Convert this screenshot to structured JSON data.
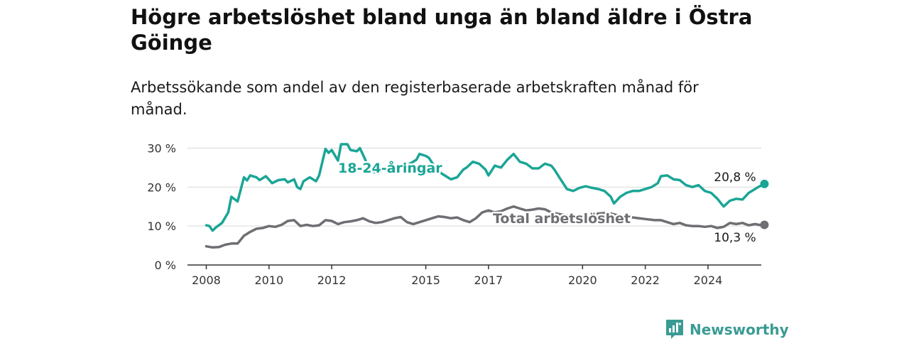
{
  "header": {
    "title": "Högre arbetslöshet bland unga än bland äldre i Östra Göinge",
    "subtitle": "Arbetssökande som andel av den registerbaserade arbetskraften månad för månad."
  },
  "brand": {
    "name": "Newsworthy",
    "color": "#3a9b94"
  },
  "chart_data": {
    "type": "line",
    "title": "Högre arbetslöshet bland unga än bland äldre i Östra Göinge",
    "subtitle": "Arbetssökande som andel av den registerbaserade arbetskraften månad för månad.",
    "xlabel": "",
    "ylabel": "",
    "x_ticks": [
      "2008",
      "2010",
      "2012",
      "2015",
      "2017",
      "2020",
      "2022",
      "2024"
    ],
    "x_range": [
      2007.4,
      2025.7
    ],
    "y_ticks": [
      {
        "value": 0,
        "label": "0 %"
      },
      {
        "value": 10,
        "label": "10 %"
      },
      {
        "value": 20,
        "label": "20 %"
      },
      {
        "value": 30,
        "label": "30 %"
      }
    ],
    "ylim": [
      0,
      31
    ],
    "grid": true,
    "legend": "inline labels",
    "series": [
      {
        "name": "18-24-åringar",
        "color": "#1aa596",
        "end_label": "20,8 %",
        "points": [
          [
            2008.0,
            10.2
          ],
          [
            2008.1,
            10.0
          ],
          [
            2008.2,
            8.8
          ],
          [
            2008.3,
            9.6
          ],
          [
            2008.5,
            10.8
          ],
          [
            2008.7,
            13.5
          ],
          [
            2008.8,
            17.5
          ],
          [
            2009.0,
            16.3
          ],
          [
            2009.2,
            22.5
          ],
          [
            2009.3,
            21.7
          ],
          [
            2009.4,
            23.0
          ],
          [
            2009.6,
            22.5
          ],
          [
            2009.7,
            21.8
          ],
          [
            2009.9,
            22.8
          ],
          [
            2010.1,
            21.0
          ],
          [
            2010.3,
            21.8
          ],
          [
            2010.5,
            22.0
          ],
          [
            2010.6,
            21.2
          ],
          [
            2010.8,
            22.0
          ],
          [
            2010.9,
            20.0
          ],
          [
            2011.0,
            19.5
          ],
          [
            2011.1,
            21.5
          ],
          [
            2011.3,
            22.5
          ],
          [
            2011.5,
            21.5
          ],
          [
            2011.6,
            23.0
          ],
          [
            2011.8,
            29.8
          ],
          [
            2011.9,
            28.8
          ],
          [
            2012.0,
            29.5
          ],
          [
            2012.2,
            26.8
          ],
          [
            2012.3,
            31.0
          ],
          [
            2012.5,
            31.0
          ],
          [
            2012.6,
            29.5
          ],
          [
            2012.8,
            29.2
          ],
          [
            2012.9,
            30.0
          ],
          [
            2013.1,
            26.5
          ],
          [
            2013.3,
            24.0
          ],
          [
            2013.5,
            23.5
          ],
          [
            2013.7,
            25.0
          ],
          [
            2013.9,
            24.2
          ],
          [
            2014.1,
            25.0
          ],
          [
            2014.3,
            25.5
          ],
          [
            2014.5,
            26.0
          ],
          [
            2014.7,
            27.0
          ],
          [
            2014.8,
            28.5
          ],
          [
            2015.0,
            28.0
          ],
          [
            2015.1,
            27.5
          ],
          [
            2015.3,
            25.0
          ],
          [
            2015.5,
            23.5
          ],
          [
            2015.6,
            23.0
          ],
          [
            2015.8,
            22.0
          ],
          [
            2016.0,
            22.5
          ],
          [
            2016.2,
            24.5
          ],
          [
            2016.3,
            25.0
          ],
          [
            2016.5,
            26.5
          ],
          [
            2016.7,
            26.0
          ],
          [
            2016.9,
            24.5
          ],
          [
            2017.0,
            23.0
          ],
          [
            2017.2,
            25.5
          ],
          [
            2017.4,
            25.0
          ],
          [
            2017.6,
            27.0
          ],
          [
            2017.8,
            28.5
          ],
          [
            2018.0,
            26.5
          ],
          [
            2018.2,
            26.0
          ],
          [
            2018.4,
            24.8
          ],
          [
            2018.6,
            24.8
          ],
          [
            2018.8,
            26.0
          ],
          [
            2019.0,
            25.5
          ],
          [
            2019.1,
            24.5
          ],
          [
            2019.3,
            22.0
          ],
          [
            2019.5,
            19.5
          ],
          [
            2019.7,
            19.0
          ],
          [
            2019.9,
            19.8
          ],
          [
            2020.1,
            20.2
          ],
          [
            2020.3,
            19.8
          ],
          [
            2020.5,
            19.5
          ],
          [
            2020.7,
            19.0
          ],
          [
            2020.9,
            17.5
          ],
          [
            2021.0,
            15.8
          ],
          [
            2021.2,
            17.5
          ],
          [
            2021.4,
            18.5
          ],
          [
            2021.6,
            19.0
          ],
          [
            2021.8,
            19.0
          ],
          [
            2022.0,
            19.5
          ],
          [
            2022.2,
            20.0
          ],
          [
            2022.4,
            21.0
          ],
          [
            2022.5,
            22.8
          ],
          [
            2022.7,
            23.0
          ],
          [
            2022.9,
            22.0
          ],
          [
            2023.1,
            21.8
          ],
          [
            2023.3,
            20.5
          ],
          [
            2023.5,
            20.0
          ],
          [
            2023.7,
            20.5
          ],
          [
            2023.9,
            19.0
          ],
          [
            2024.1,
            18.5
          ],
          [
            2024.3,
            17.0
          ],
          [
            2024.5,
            15.0
          ],
          [
            2024.7,
            16.5
          ],
          [
            2024.9,
            17.0
          ],
          [
            2025.1,
            16.8
          ],
          [
            2025.3,
            18.5
          ],
          [
            2025.5,
            19.5
          ],
          [
            2025.6,
            20.0
          ],
          [
            2025.8,
            20.8
          ]
        ]
      },
      {
        "name": "Total arbetslöshet",
        "color": "#6e6e73",
        "end_label": "10,3 %",
        "points": [
          [
            2008.0,
            4.8
          ],
          [
            2008.2,
            4.5
          ],
          [
            2008.4,
            4.6
          ],
          [
            2008.6,
            5.2
          ],
          [
            2008.8,
            5.5
          ],
          [
            2009.0,
            5.5
          ],
          [
            2009.2,
            7.5
          ],
          [
            2009.4,
            8.5
          ],
          [
            2009.6,
            9.3
          ],
          [
            2009.8,
            9.5
          ],
          [
            2010.0,
            10.0
          ],
          [
            2010.2,
            9.8
          ],
          [
            2010.4,
            10.3
          ],
          [
            2010.6,
            11.3
          ],
          [
            2010.8,
            11.5
          ],
          [
            2011.0,
            10.0
          ],
          [
            2011.2,
            10.3
          ],
          [
            2011.4,
            10.0
          ],
          [
            2011.6,
            10.2
          ],
          [
            2011.8,
            11.5
          ],
          [
            2012.0,
            11.3
          ],
          [
            2012.2,
            10.5
          ],
          [
            2012.4,
            11.0
          ],
          [
            2012.6,
            11.2
          ],
          [
            2012.8,
            11.5
          ],
          [
            2013.0,
            12.0
          ],
          [
            2013.2,
            11.2
          ],
          [
            2013.4,
            10.8
          ],
          [
            2013.6,
            11.0
          ],
          [
            2013.8,
            11.5
          ],
          [
            2014.0,
            12.0
          ],
          [
            2014.2,
            12.3
          ],
          [
            2014.4,
            11.0
          ],
          [
            2014.6,
            10.5
          ],
          [
            2014.8,
            11.0
          ],
          [
            2015.0,
            11.5
          ],
          [
            2015.2,
            12.0
          ],
          [
            2015.4,
            12.5
          ],
          [
            2015.6,
            12.3
          ],
          [
            2015.8,
            12.0
          ],
          [
            2016.0,
            12.2
          ],
          [
            2016.2,
            11.5
          ],
          [
            2016.4,
            11.0
          ],
          [
            2016.6,
            12.0
          ],
          [
            2016.8,
            13.5
          ],
          [
            2017.0,
            14.0
          ],
          [
            2017.2,
            13.5
          ],
          [
            2017.4,
            13.8
          ],
          [
            2017.6,
            14.5
          ],
          [
            2017.8,
            15.0
          ],
          [
            2018.0,
            14.5
          ],
          [
            2018.2,
            14.0
          ],
          [
            2018.4,
            14.2
          ],
          [
            2018.6,
            14.5
          ],
          [
            2018.8,
            14.3
          ],
          [
            2019.0,
            13.5
          ],
          [
            2019.3,
            13.0
          ],
          [
            2019.6,
            12.6
          ],
          [
            2019.9,
            12.4
          ],
          [
            2020.2,
            12.7
          ],
          [
            2020.5,
            13.2
          ],
          [
            2020.8,
            13.4
          ],
          [
            2021.0,
            13.0
          ],
          [
            2021.3,
            12.5
          ],
          [
            2021.6,
            12.2
          ],
          [
            2022.0,
            11.8
          ],
          [
            2022.3,
            11.5
          ],
          [
            2022.5,
            11.5
          ],
          [
            2022.7,
            11.0
          ],
          [
            2022.9,
            10.5
          ],
          [
            2023.1,
            10.8
          ],
          [
            2023.3,
            10.2
          ],
          [
            2023.5,
            10.0
          ],
          [
            2023.7,
            10.0
          ],
          [
            2023.9,
            9.8
          ],
          [
            2024.1,
            10.0
          ],
          [
            2024.3,
            9.5
          ],
          [
            2024.5,
            9.8
          ],
          [
            2024.7,
            10.8
          ],
          [
            2024.9,
            10.5
          ],
          [
            2025.1,
            10.8
          ],
          [
            2025.3,
            10.2
          ],
          [
            2025.5,
            10.5
          ],
          [
            2025.7,
            10.2
          ],
          [
            2025.8,
            10.3
          ]
        ]
      }
    ]
  }
}
